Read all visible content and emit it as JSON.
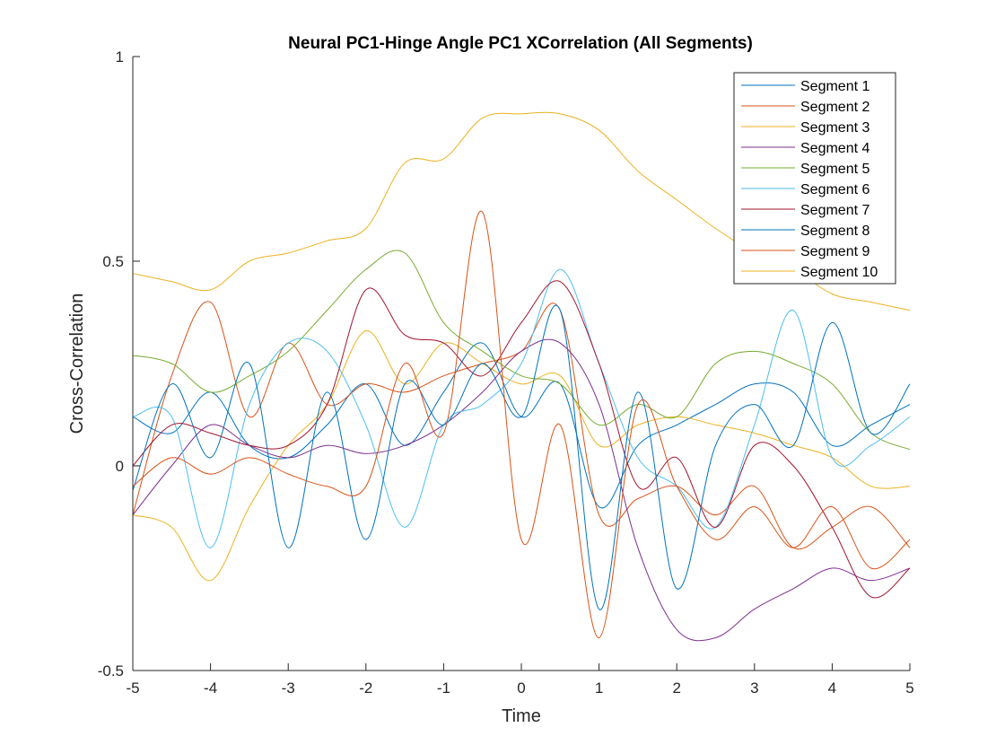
{
  "chart_data": {
    "type": "line",
    "title": "Neural PC1-Hinge Angle PC1 XCorrelation (All Segments)",
    "xlabel": "Time",
    "ylabel": "Cross-Correlation",
    "xlim": [
      -5,
      5
    ],
    "ylim": [
      -0.5,
      1
    ],
    "x_ticks": [
      -5,
      -4,
      -3,
      -2,
      -1,
      0,
      1,
      2,
      3,
      4,
      5
    ],
    "x_tick_labels": [
      "-5",
      "-4",
      "-3",
      "-2",
      "-1",
      "0",
      "1",
      "2",
      "3",
      "4",
      "5"
    ],
    "y_ticks": [
      -0.5,
      0,
      0.5,
      1
    ],
    "y_tick_labels": [
      "-0.5",
      "0",
      "0.5",
      "1"
    ],
    "grid": false,
    "legend_position": "top-right",
    "x": [
      -5,
      -4.5,
      -4,
      -3.5,
      -3,
      -2.5,
      -2,
      -1.5,
      -1,
      -0.5,
      0,
      0.5,
      1,
      1.5,
      2,
      2.5,
      3,
      3.5,
      4,
      4.5,
      5
    ],
    "series": [
      {
        "name": "Segment 1",
        "color": "#0072BD",
        "values": [
          0.12,
          0.08,
          0.18,
          0.05,
          0.02,
          0.1,
          0.2,
          0.05,
          0.18,
          0.3,
          0.12,
          0.2,
          -0.1,
          0.05,
          0.1,
          0.15,
          0.2,
          0.18,
          0.05,
          0.1,
          0.15
        ]
      },
      {
        "name": "Segment 2",
        "color": "#D95319",
        "values": [
          -0.12,
          0.22,
          0.4,
          0.12,
          0.3,
          0.15,
          0.2,
          0.18,
          0.22,
          0.25,
          0.28,
          0.38,
          -0.12,
          -0.08,
          -0.05,
          -0.12,
          -0.05,
          -0.2,
          -0.15,
          -0.1,
          -0.2
        ]
      },
      {
        "name": "Segment 3",
        "color": "#EDB120",
        "values": [
          -0.12,
          -0.15,
          -0.28,
          -0.1,
          0.05,
          0.15,
          0.33,
          0.2,
          0.3,
          0.25,
          0.2,
          0.22,
          0.05,
          0.1,
          0.12,
          0.1,
          0.08,
          0.05,
          0.02,
          -0.05,
          -0.05
        ]
      },
      {
        "name": "Segment 4",
        "color": "#7E2F8E",
        "values": [
          -0.12,
          0.0,
          0.1,
          0.05,
          0.02,
          0.05,
          0.03,
          0.05,
          0.1,
          0.18,
          0.28,
          0.3,
          0.15,
          -0.2,
          -0.4,
          -0.42,
          -0.35,
          -0.3,
          -0.25,
          -0.28,
          -0.25
        ]
      },
      {
        "name": "Segment 5",
        "color": "#77AC30",
        "values": [
          0.27,
          0.25,
          0.18,
          0.22,
          0.28,
          0.38,
          0.48,
          0.52,
          0.35,
          0.28,
          0.22,
          0.2,
          0.1,
          0.15,
          0.12,
          0.25,
          0.28,
          0.25,
          0.2,
          0.08,
          0.04
        ]
      },
      {
        "name": "Segment 6",
        "color": "#4DBEEE",
        "values": [
          0.12,
          0.12,
          -0.2,
          0.15,
          0.3,
          0.28,
          0.1,
          -0.15,
          0.1,
          0.15,
          0.25,
          0.48,
          0.25,
          0.02,
          -0.05,
          -0.15,
          0.1,
          0.38,
          0.02,
          0.05,
          0.12
        ]
      },
      {
        "name": "Segment 7",
        "color": "#A2142F",
        "values": [
          0.0,
          0.1,
          0.08,
          0.05,
          0.05,
          0.15,
          0.43,
          0.32,
          0.3,
          0.22,
          0.35,
          0.45,
          0.25,
          -0.05,
          0.02,
          -0.15,
          0.05,
          0.0,
          -0.15,
          -0.32,
          -0.25
        ]
      },
      {
        "name": "Segment 8",
        "color": "#0072BD",
        "values": [
          -0.06,
          0.2,
          0.02,
          0.25,
          -0.2,
          0.18,
          -0.18,
          0.2,
          0.1,
          0.25,
          0.12,
          0.38,
          -0.35,
          0.18,
          -0.3,
          0.05,
          0.15,
          0.05,
          0.35,
          0.08,
          0.2
        ]
      },
      {
        "name": "Segment 9",
        "color": "#D95319",
        "values": [
          -0.05,
          0.02,
          -0.02,
          0.02,
          -0.02,
          -0.05,
          -0.05,
          0.25,
          0.08,
          0.62,
          -0.18,
          0.1,
          -0.42,
          0.15,
          -0.05,
          -0.18,
          -0.1,
          -0.2,
          -0.1,
          -0.25,
          -0.18
        ]
      },
      {
        "name": "Segment 10",
        "color": "#EDB120",
        "values": [
          0.47,
          0.45,
          0.43,
          0.5,
          0.52,
          0.55,
          0.58,
          0.74,
          0.75,
          0.85,
          0.86,
          0.86,
          0.82,
          0.72,
          0.65,
          0.58,
          0.52,
          0.48,
          0.42,
          0.4,
          0.38
        ]
      }
    ]
  }
}
